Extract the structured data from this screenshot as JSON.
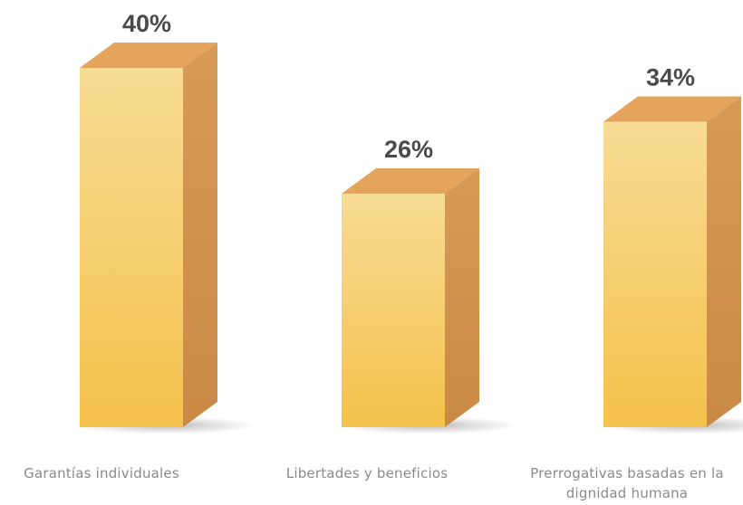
{
  "chart_data": {
    "type": "bar",
    "categories": [
      "Garantías individuales",
      "Libertades y beneficios",
      "Prerrogativas basadas en la dignidad humana"
    ],
    "category_lines": [
      [
        "Garantías individuales"
      ],
      [
        "Libertades y beneficios"
      ],
      [
        "Prerrogativas basadas en la",
        "dignidad humana"
      ]
    ],
    "values": [
      40,
      26,
      34
    ],
    "value_labels": [
      "40%",
      "26%",
      "34%"
    ],
    "ylim": [
      0,
      40
    ],
    "grid": false,
    "legend": "none",
    "title": "",
    "xlabel": "",
    "ylabel": "",
    "colors": {
      "front_top": "#f7dc95",
      "front_bottom": "#f5c14a",
      "top_face": "#e4a45c",
      "side_face": "#cf9454",
      "value_text": "#4a4a4a",
      "category_text": "#8a8a8a"
    }
  }
}
